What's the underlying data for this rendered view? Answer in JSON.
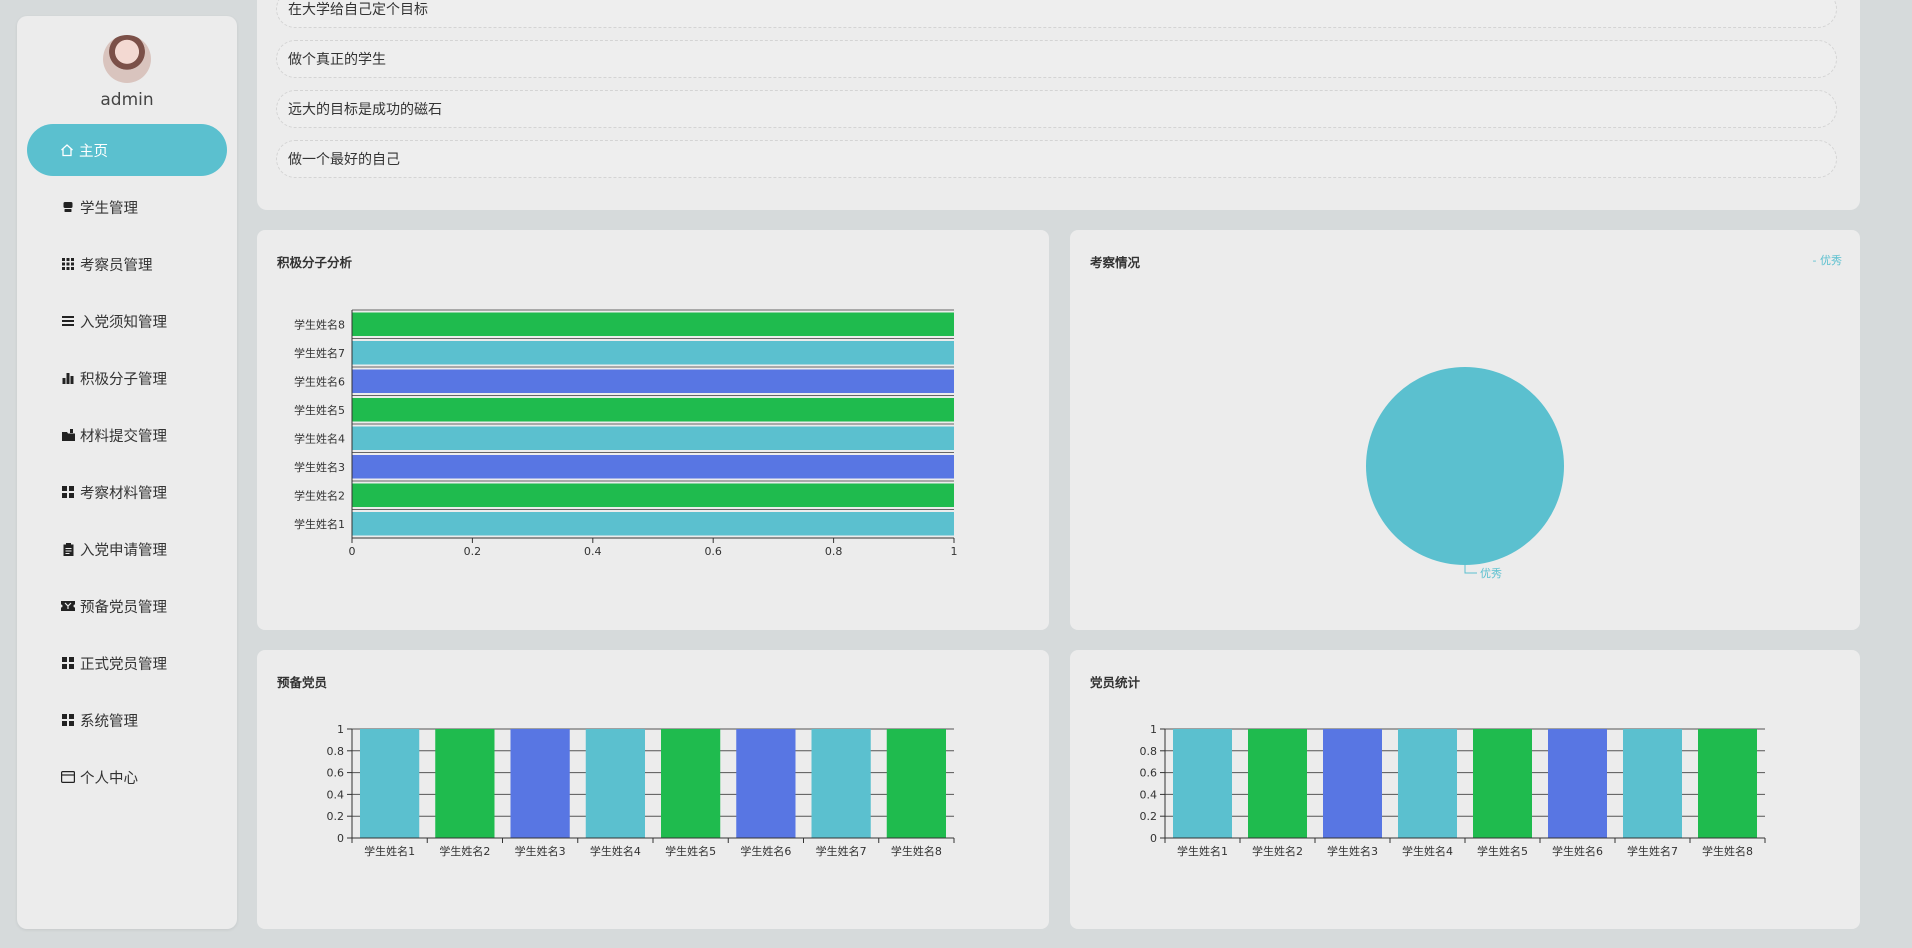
{
  "sidebar": {
    "username": "admin",
    "items": [
      {
        "label": "主页",
        "icon": "home-icon"
      },
      {
        "label": "学生管理",
        "icon": "user-icon"
      },
      {
        "label": "考察员管理",
        "icon": "grid-icon"
      },
      {
        "label": "入党须知管理",
        "icon": "list-icon"
      },
      {
        "label": "积极分子管理",
        "icon": "bar-chart-icon"
      },
      {
        "label": "材料提交管理",
        "icon": "folder-icon"
      },
      {
        "label": "考察材料管理",
        "icon": "grid-icon"
      },
      {
        "label": "入党申请管理",
        "icon": "clipboard-icon"
      },
      {
        "label": "预备党员管理",
        "icon": "ticket-icon"
      },
      {
        "label": "正式党员管理",
        "icon": "grid-icon"
      },
      {
        "label": "系统管理",
        "icon": "grid-icon"
      },
      {
        "label": "个人中心",
        "icon": "profile-icon"
      }
    ]
  },
  "goals": [
    "在大学给自己定个目标",
    "做个真正的学生",
    "远大的目标是成功的磁石",
    "做一个最好的自己"
  ],
  "colors": {
    "accent": "#5bc0cf",
    "green": "#1fbb4e",
    "blue": "#5876e3",
    "cyan": "#5bc0cf"
  },
  "chart_data": [
    {
      "id": "activist",
      "type": "bar",
      "orientation": "horizontal",
      "title": "积极分子分析",
      "categories": [
        "学生姓名1",
        "学生姓名2",
        "学生姓名3",
        "学生姓名4",
        "学生姓名5",
        "学生姓名6",
        "学生姓名7",
        "学生姓名8"
      ],
      "values": [
        1,
        1,
        1,
        1,
        1,
        1,
        1,
        1
      ],
      "xlim": [
        0,
        1
      ],
      "ticks": [
        "0",
        "0.2",
        "0.4",
        "0.6",
        "0.8",
        "1"
      ]
    },
    {
      "id": "inspection",
      "type": "pie",
      "title": "考察情况",
      "slices": [
        {
          "label": "优秀",
          "value": 1
        }
      ],
      "legend": "- 优秀"
    },
    {
      "id": "probationary",
      "type": "bar",
      "title": "预备党员",
      "categories": [
        "学生姓名1",
        "学生姓名2",
        "学生姓名3",
        "学生姓名4",
        "学生姓名5",
        "学生姓名6",
        "学生姓名7",
        "学生姓名8"
      ],
      "values": [
        1,
        1,
        1,
        1,
        1,
        1,
        1,
        1
      ],
      "ylim": [
        0,
        1
      ],
      "ticks": [
        "0",
        "0.2",
        "0.4",
        "0.6",
        "0.8",
        "1"
      ]
    },
    {
      "id": "members",
      "type": "bar",
      "title": "党员统计",
      "categories": [
        "学生姓名1",
        "学生姓名2",
        "学生姓名3",
        "学生姓名4",
        "学生姓名5",
        "学生姓名6",
        "学生姓名7",
        "学生姓名8"
      ],
      "values": [
        1,
        1,
        1,
        1,
        1,
        1,
        1,
        1
      ],
      "ylim": [
        0,
        1
      ],
      "ticks": [
        "0",
        "0.2",
        "0.4",
        "0.6",
        "0.8",
        "1"
      ]
    }
  ]
}
